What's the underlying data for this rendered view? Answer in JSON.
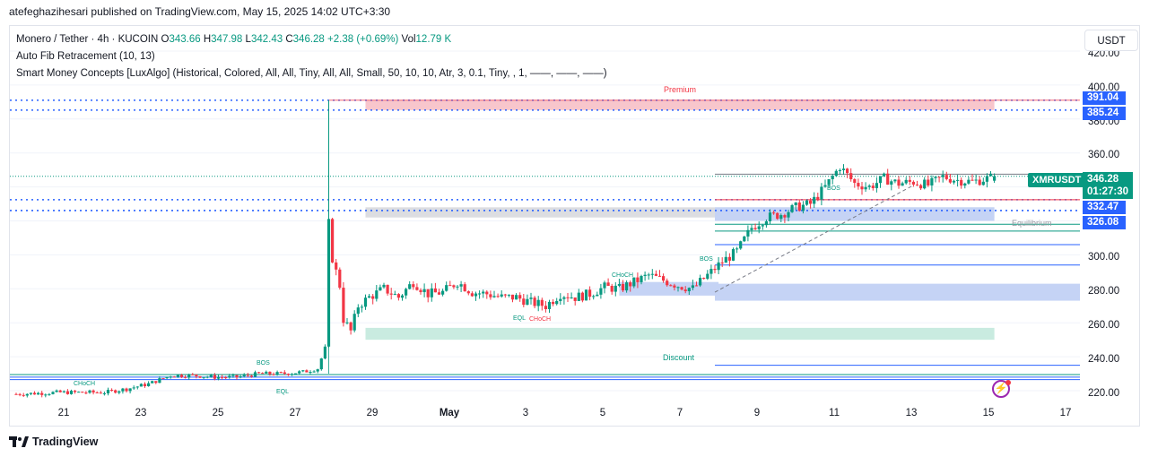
{
  "publisher_line": "atefeghazihesari published on TradingView.com, May 15, 2025 14:02 UTC+3:30",
  "legend": {
    "symbol": "Monero / Tether · 4h · KUCOIN",
    "open_label": "O",
    "open": "343.66",
    "high_label": "H",
    "high": "347.98",
    "low_label": "L",
    "low": "342.43",
    "close_label": "C",
    "close": "346.28",
    "change": "+2.38 (+0.69%)",
    "vol_label": "Vol",
    "vol": "12.79 K",
    "indicator_1": "Auto Fib Retracement (10, 13)",
    "indicator_2": "Smart Money Concepts [LuxAlgo] (Historical, Colored, All, All, Tiny, All, All, Small, 50, 10, 10, Atr, 3, 0.1, Tiny, , 1, ——, ——, ——)"
  },
  "currency_button": "USDT",
  "price_axis": [
    "420.00",
    "400.00",
    "380.00",
    "360.00",
    "340.00",
    "300.00",
    "280.00",
    "260.00",
    "240.00",
    "220.00"
  ],
  "price_tags": [
    {
      "value": "391.04",
      "color": "#2962ff"
    },
    {
      "value": "385.24",
      "color": "#2962ff"
    },
    {
      "value": "332.47",
      "color": "#2962ff"
    },
    {
      "value": "326.08",
      "color": "#2962ff"
    }
  ],
  "symbol_tag": "XMRUSDT",
  "last_price": "346.28",
  "countdown": "01:27:30",
  "time_axis": [
    "21",
    "23",
    "25",
    "27",
    "29",
    "May",
    "3",
    "5",
    "7",
    "9",
    "11",
    "13",
    "15",
    "17"
  ],
  "zones": {
    "premium": "Premium",
    "equilibrium": "Equilibrium",
    "discount": "Discount"
  },
  "smc_labels": {
    "choch": "CHoCH",
    "bos": "BOS",
    "eql": "EQL"
  },
  "colors": {
    "up": "#089981",
    "down": "#f23645",
    "premium_zone": "#f8c6cc",
    "discount_zone": "#c9ebe0",
    "order_block": "#c5d3f5",
    "fib_line": "#2962ff"
  },
  "brand": "TradingView",
  "chart_data": {
    "type": "candlestick",
    "symbol": "Monero / Tether",
    "timeframe": "4h",
    "exchange": "KUCOIN",
    "ylim": [
      213,
      430
    ],
    "x_ticks": [
      "21",
      "23",
      "25",
      "27",
      "29",
      "May",
      "3",
      "5",
      "7",
      "9",
      "11",
      "13",
      "15",
      "17"
    ],
    "ohlc_last": {
      "open": 343.66,
      "high": 347.98,
      "low": 342.43,
      "close": 346.28
    },
    "key_levels": [
      391.04,
      385.24,
      332.47,
      326.08
    ],
    "close_path": [
      [
        0,
        218
      ],
      [
        12,
        219
      ],
      [
        24,
        219
      ],
      [
        30,
        221
      ],
      [
        36,
        224
      ],
      [
        42,
        229
      ],
      [
        48,
        229
      ],
      [
        54,
        228
      ],
      [
        60,
        228
      ],
      [
        66,
        230
      ],
      [
        72,
        230
      ],
      [
        78,
        231
      ],
      [
        82,
        233
      ],
      [
        84,
        245
      ],
      [
        85,
        320
      ],
      [
        86,
        298
      ],
      [
        88,
        282
      ],
      [
        89,
        262
      ],
      [
        91,
        255
      ],
      [
        93,
        270
      ],
      [
        96,
        275
      ],
      [
        100,
        280
      ],
      [
        104,
        275
      ],
      [
        108,
        284
      ],
      [
        112,
        277
      ],
      [
        116,
        278
      ],
      [
        120,
        284
      ],
      [
        124,
        278
      ],
      [
        128,
        277
      ],
      [
        132,
        275
      ],
      [
        136,
        275
      ],
      [
        140,
        272
      ],
      [
        144,
        270
      ],
      [
        148,
        277
      ],
      [
        152,
        275
      ],
      [
        156,
        277
      ],
      [
        160,
        281
      ],
      [
        164,
        280
      ],
      [
        168,
        284
      ],
      [
        172,
        288
      ],
      [
        176,
        285
      ],
      [
        180,
        282
      ],
      [
        184,
        280
      ],
      [
        188,
        288
      ],
      [
        192,
        296
      ],
      [
        196,
        302
      ],
      [
        200,
        316
      ],
      [
        204,
        322
      ],
      [
        208,
        324
      ],
      [
        212,
        328
      ],
      [
        216,
        330
      ],
      [
        220,
        340
      ],
      [
        224,
        352
      ],
      [
        228,
        342
      ],
      [
        232,
        340
      ],
      [
        236,
        345
      ],
      [
        240,
        342
      ],
      [
        244,
        343
      ],
      [
        248,
        341
      ],
      [
        252,
        346
      ],
      [
        256,
        344
      ],
      [
        260,
        343
      ],
      [
        264,
        345
      ],
      [
        266,
        346
      ]
    ]
  }
}
